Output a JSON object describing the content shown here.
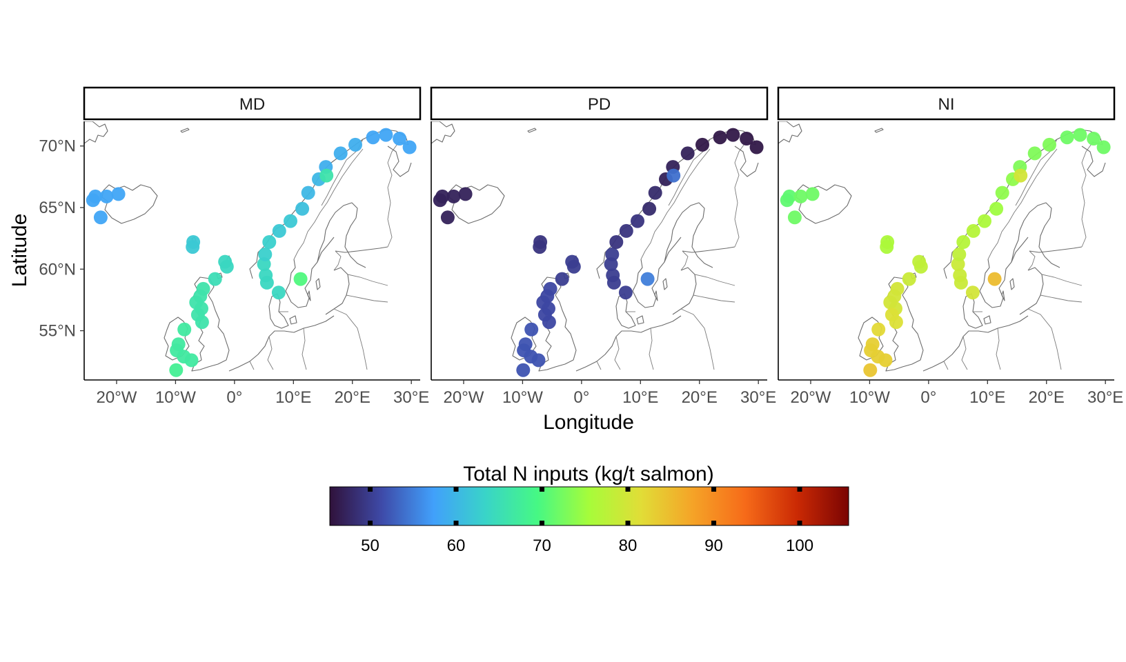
{
  "facets": [
    {
      "label": "MD",
      "offset": 0
    },
    {
      "label": "PD",
      "offset": -18
    },
    {
      "label": "NI",
      "offset": 17
    }
  ],
  "axes": {
    "xlabel": "Longitude",
    "ylabel": "Latitude",
    "x_ticks": [
      {
        "value": -20,
        "label": "20°W"
      },
      {
        "value": -10,
        "label": "10°W"
      },
      {
        "value": 0,
        "label": "0°"
      },
      {
        "value": 10,
        "label": "10°E"
      },
      {
        "value": 20,
        "label": "20°E"
      },
      {
        "value": 30,
        "label": "30°E"
      }
    ],
    "y_ticks": [
      {
        "value": 55,
        "label": "55°N"
      },
      {
        "value": 60,
        "label": "60°N"
      },
      {
        "value": 65,
        "label": "65°N"
      },
      {
        "value": 70,
        "label": "70°N"
      }
    ],
    "xlim": [
      -25.5,
      31.5
    ],
    "ylim": [
      51,
      72
    ]
  },
  "legend": {
    "title": "Total N inputs (kg/t salmon)",
    "range": [
      45.3,
      105.7
    ],
    "ticks": [
      50,
      60,
      70,
      80,
      90,
      100
    ],
    "colormap": "turbo",
    "stops": [
      "#30123b",
      "#3e4aa8",
      "#41a0fb",
      "#39d4c8",
      "#46f884",
      "#a7fc3a",
      "#e1dd37",
      "#f5a327",
      "#f66b19",
      "#cb2a04",
      "#7a0403"
    ]
  },
  "chart_data": {
    "type": "scatter",
    "xlabel": "Longitude",
    "ylabel": "Latitude",
    "xlim": [
      -25.5,
      31.5
    ],
    "ylim": [
      51,
      72
    ],
    "color_scale": "Total N inputs (kg/t salmon)",
    "panels": [
      {
        "facet": "MD",
        "color_value_range": [
          58,
          70
        ]
      },
      {
        "facet": "PD",
        "color_value_range": [
          46,
          55
        ]
      },
      {
        "facet": "NI",
        "color_value_range": [
          71,
          85
        ]
      }
    ],
    "points": [
      {
        "lon": -24.0,
        "lat": 65.6,
        "MD": 58,
        "PD": 47,
        "NI": 71
      },
      {
        "lon": -23.6,
        "lat": 65.9,
        "MD": 58,
        "PD": 47,
        "NI": 71
      },
      {
        "lon": -21.7,
        "lat": 65.9,
        "MD": 58,
        "PD": 47,
        "NI": 72
      },
      {
        "lon": -19.7,
        "lat": 66.1,
        "MD": 58,
        "PD": 47,
        "NI": 72
      },
      {
        "lon": -22.7,
        "lat": 64.2,
        "MD": 58,
        "PD": 47,
        "NI": 72
      },
      {
        "lon": -7.0,
        "lat": 62.2,
        "MD": 62,
        "PD": 49,
        "NI": 76
      },
      {
        "lon": -7.1,
        "lat": 61.8,
        "MD": 62,
        "PD": 49,
        "NI": 76
      },
      {
        "lon": -1.6,
        "lat": 60.6,
        "MD": 64,
        "PD": 50,
        "NI": 78
      },
      {
        "lon": -1.3,
        "lat": 60.2,
        "MD": 64,
        "PD": 50,
        "NI": 78
      },
      {
        "lon": -3.3,
        "lat": 59.2,
        "MD": 65,
        "PD": 50,
        "NI": 79
      },
      {
        "lon": -5.3,
        "lat": 58.4,
        "MD": 66,
        "PD": 51,
        "NI": 80
      },
      {
        "lon": -5.8,
        "lat": 57.8,
        "MD": 66,
        "PD": 51,
        "NI": 80
      },
      {
        "lon": -6.5,
        "lat": 57.3,
        "MD": 66,
        "PD": 51,
        "NI": 80
      },
      {
        "lon": -5.6,
        "lat": 56.8,
        "MD": 66,
        "PD": 51,
        "NI": 80
      },
      {
        "lon": -6.2,
        "lat": 56.3,
        "MD": 66,
        "PD": 51,
        "NI": 81
      },
      {
        "lon": -5.5,
        "lat": 55.7,
        "MD": 66,
        "PD": 51,
        "NI": 81
      },
      {
        "lon": -8.5,
        "lat": 55.1,
        "MD": 67,
        "PD": 52,
        "NI": 82
      },
      {
        "lon": -9.5,
        "lat": 53.9,
        "MD": 67,
        "PD": 52,
        "NI": 83
      },
      {
        "lon": -9.8,
        "lat": 53.4,
        "MD": 67,
        "PD": 52,
        "NI": 83
      },
      {
        "lon": -8.6,
        "lat": 52.9,
        "MD": 67,
        "PD": 52,
        "NI": 83
      },
      {
        "lon": -7.3,
        "lat": 52.6,
        "MD": 67,
        "PD": 52,
        "NI": 83
      },
      {
        "lon": -9.9,
        "lat": 51.8,
        "MD": 68,
        "PD": 52,
        "NI": 84
      },
      {
        "lon": 5.5,
        "lat": 58.9,
        "MD": 64,
        "PD": 50,
        "NI": 79
      },
      {
        "lon": 5.3,
        "lat": 59.5,
        "MD": 64,
        "PD": 50,
        "NI": 79
      },
      {
        "lon": 5.0,
        "lat": 60.4,
        "MD": 64,
        "PD": 50,
        "NI": 79
      },
      {
        "lon": 5.2,
        "lat": 61.2,
        "MD": 63,
        "PD": 50,
        "NI": 78
      },
      {
        "lon": 5.9,
        "lat": 62.2,
        "MD": 63,
        "PD": 49,
        "NI": 77
      },
      {
        "lon": 7.6,
        "lat": 63.1,
        "MD": 62,
        "PD": 49,
        "NI": 77
      },
      {
        "lon": 9.5,
        "lat": 63.9,
        "MD": 62,
        "PD": 49,
        "NI": 76
      },
      {
        "lon": 11.5,
        "lat": 64.9,
        "MD": 61,
        "PD": 48,
        "NI": 75
      },
      {
        "lon": 12.5,
        "lat": 66.2,
        "MD": 60,
        "PD": 48,
        "NI": 74
      },
      {
        "lon": 14.3,
        "lat": 67.3,
        "MD": 60,
        "PD": 47,
        "NI": 74
      },
      {
        "lon": 15.5,
        "lat": 68.3,
        "MD": 59,
        "PD": 47,
        "NI": 73
      },
      {
        "lon": 18.0,
        "lat": 69.4,
        "MD": 59,
        "PD": 47,
        "NI": 73
      },
      {
        "lon": 20.5,
        "lat": 70.1,
        "MD": 59,
        "PD": 46,
        "NI": 73
      },
      {
        "lon": 23.5,
        "lat": 70.7,
        "MD": 58,
        "PD": 46,
        "NI": 72
      },
      {
        "lon": 25.7,
        "lat": 70.9,
        "MD": 58,
        "PD": 46,
        "NI": 72
      },
      {
        "lon": 28.0,
        "lat": 70.6,
        "MD": 58,
        "PD": 46,
        "NI": 72
      },
      {
        "lon": 29.7,
        "lat": 69.9,
        "MD": 58,
        "PD": 46,
        "NI": 72
      },
      {
        "lon": 15.6,
        "lat": 67.6,
        "MD": 66,
        "PD": 54,
        "NI": 80
      },
      {
        "lon": 7.5,
        "lat": 58.1,
        "MD": 64,
        "PD": 50,
        "NI": 80
      },
      {
        "lon": 11.2,
        "lat": 59.2,
        "MD": 70,
        "PD": 55,
        "NI": 85
      }
    ]
  }
}
